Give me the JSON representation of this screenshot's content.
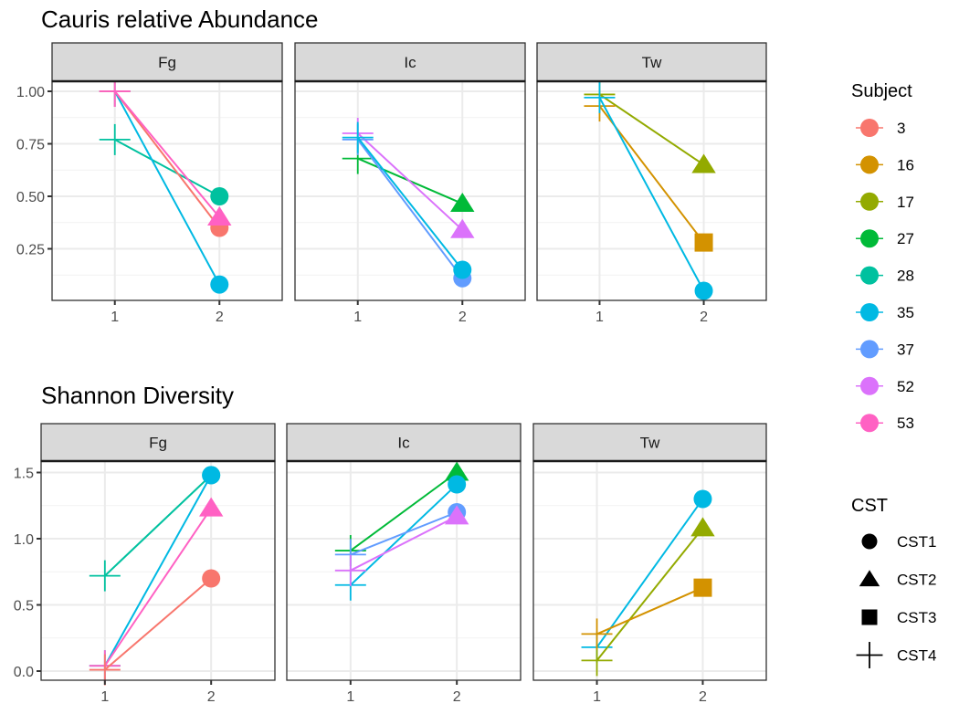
{
  "chart_data": {
    "type": "line",
    "facets": [
      "Fg",
      "Ic",
      "Tw"
    ],
    "x_ticks": [
      "1",
      "2"
    ],
    "x": [
      1,
      2
    ],
    "subject_legend": {
      "title": "Subject",
      "entries": [
        {
          "label": "3",
          "color": "#F8766D"
        },
        {
          "label": "16",
          "color": "#D39200"
        },
        {
          "label": "17",
          "color": "#93AA00"
        },
        {
          "label": "27",
          "color": "#00BA38"
        },
        {
          "label": "28",
          "color": "#00C19F"
        },
        {
          "label": "35",
          "color": "#00B9E3"
        },
        {
          "label": "37",
          "color": "#619CFF"
        },
        {
          "label": "52",
          "color": "#DB72FB"
        },
        {
          "label": "53",
          "color": "#FF61C3"
        }
      ]
    },
    "cst_legend": {
      "title": "CST",
      "entries": [
        {
          "label": "CST1",
          "shape": "circle"
        },
        {
          "label": "CST2",
          "shape": "triangle"
        },
        {
          "label": "CST3",
          "shape": "square"
        },
        {
          "label": "CST4",
          "shape": "plus"
        }
      ]
    },
    "panels": [
      {
        "title": "Cauris relative Abundance",
        "ylim": [
          0.03,
          1.05
        ],
        "y_ticks": [
          0.25,
          0.5,
          0.75,
          1.0
        ],
        "y_tick_labels": [
          "0.25",
          "0.50",
          "0.75",
          "1.00"
        ],
        "series": [
          {
            "facet": "Fg",
            "subject": "28",
            "values": [
              0.77,
              0.5
            ],
            "shapes": [
              "CST4",
              "CST1"
            ]
          },
          {
            "facet": "Fg",
            "subject": "35",
            "values": [
              1.0,
              0.08
            ],
            "shapes": [
              "CST4",
              "CST1"
            ]
          },
          {
            "facet": "Fg",
            "subject": "3",
            "values": [
              1.0,
              0.35
            ],
            "shapes": [
              "CST4",
              "CST1"
            ]
          },
          {
            "facet": "Fg",
            "subject": "53",
            "values": [
              1.0,
              0.4
            ],
            "shapes": [
              "CST4",
              "CST2"
            ]
          },
          {
            "facet": "Ic",
            "subject": "27",
            "values": [
              0.68,
              0.465
            ],
            "shapes": [
              "CST4",
              "CST2"
            ]
          },
          {
            "facet": "Ic",
            "subject": "52",
            "values": [
              0.8,
              0.34
            ],
            "shapes": [
              "CST4",
              "CST2"
            ]
          },
          {
            "facet": "Ic",
            "subject": "37",
            "values": [
              0.77,
              0.11
            ],
            "shapes": [
              "CST4",
              "CST1"
            ]
          },
          {
            "facet": "Ic",
            "subject": "35",
            "values": [
              0.78,
              0.15
            ],
            "shapes": [
              "CST4",
              "CST1"
            ]
          },
          {
            "facet": "Tw",
            "subject": "17",
            "values": [
              0.985,
              0.65
            ],
            "shapes": [
              "CST4",
              "CST2"
            ]
          },
          {
            "facet": "Tw",
            "subject": "16",
            "values": [
              0.93,
              0.28
            ],
            "shapes": [
              "CST4",
              "CST3"
            ]
          },
          {
            "facet": "Tw",
            "subject": "35",
            "values": [
              0.97,
              0.05
            ],
            "shapes": [
              "CST4",
              "CST1"
            ]
          }
        ]
      },
      {
        "title": "Shannon Diversity",
        "ylim": [
          -0.07,
          1.59
        ],
        "y_ticks": [
          0.0,
          0.5,
          1.0,
          1.5
        ],
        "y_tick_labels": [
          "0.0",
          "0.5",
          "1.0",
          "1.5"
        ],
        "series": [
          {
            "facet": "Fg",
            "subject": "28",
            "values": [
              0.72,
              1.48
            ],
            "shapes": [
              "CST4",
              "CST1"
            ]
          },
          {
            "facet": "Fg",
            "subject": "35",
            "values": [
              0.04,
              1.48
            ],
            "shapes": [
              "CST4",
              "CST1"
            ]
          },
          {
            "facet": "Fg",
            "subject": "53",
            "values": [
              0.04,
              1.23
            ],
            "shapes": [
              "CST4",
              "CST2"
            ]
          },
          {
            "facet": "Fg",
            "subject": "3",
            "values": [
              0.01,
              0.7
            ],
            "shapes": [
              "CST4",
              "CST1"
            ]
          },
          {
            "facet": "Ic",
            "subject": "27",
            "values": [
              0.91,
              1.5
            ],
            "shapes": [
              "CST4",
              "CST2"
            ]
          },
          {
            "facet": "Ic",
            "subject": "35",
            "values": [
              0.65,
              1.41
            ],
            "shapes": [
              "CST4",
              "CST1"
            ]
          },
          {
            "facet": "Ic",
            "subject": "37",
            "values": [
              0.88,
              1.2
            ],
            "shapes": [
              "CST4",
              "CST1"
            ]
          },
          {
            "facet": "Ic",
            "subject": "52",
            "values": [
              0.76,
              1.17
            ],
            "shapes": [
              "CST4",
              "CST2"
            ]
          },
          {
            "facet": "Tw",
            "subject": "35",
            "values": [
              0.18,
              1.3
            ],
            "shapes": [
              "CST4",
              "CST1"
            ]
          },
          {
            "facet": "Tw",
            "subject": "17",
            "values": [
              0.08,
              1.08
            ],
            "shapes": [
              "CST4",
              "CST2"
            ]
          },
          {
            "facet": "Tw",
            "subject": "16",
            "values": [
              0.28,
              0.63
            ],
            "shapes": [
              "CST4",
              "CST3"
            ]
          }
        ]
      }
    ]
  }
}
